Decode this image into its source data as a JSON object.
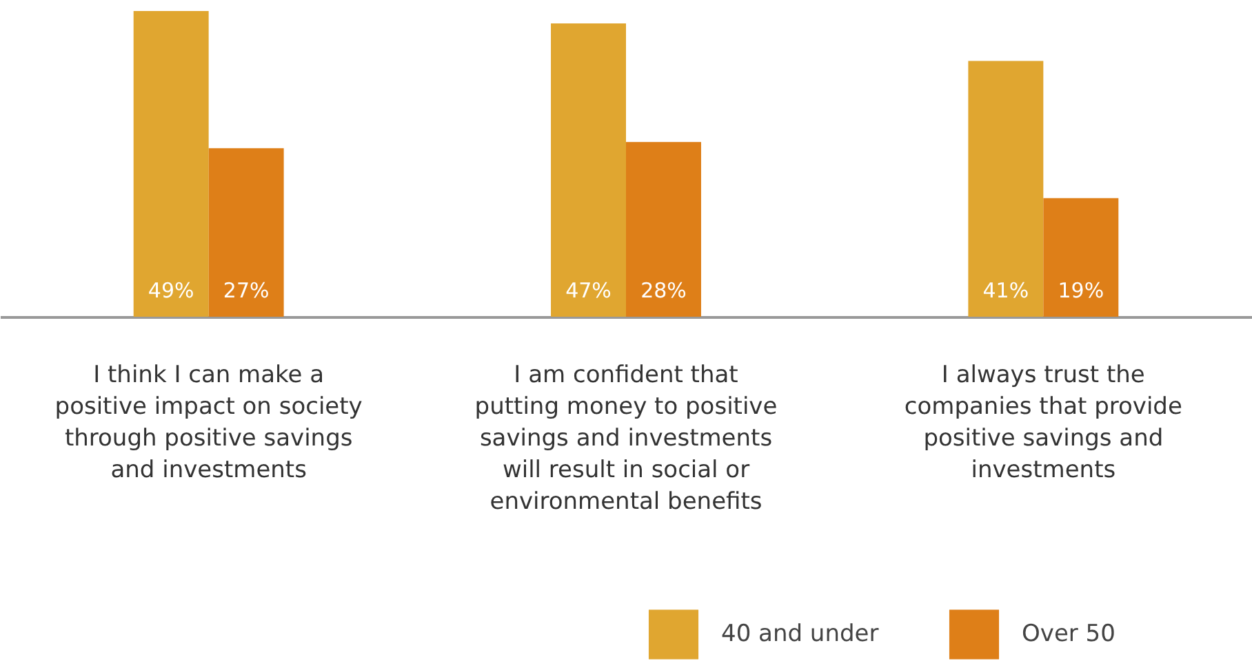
{
  "chart_data": {
    "type": "bar",
    "categories": [
      "I think I can make a positive impact on society through positive savings and investments",
      "I am confident that putting money to positive savings and investments will result in social or environmental benefits",
      "I always trust the companies that provide positive savings and investments"
    ],
    "series": [
      {
        "name": "40 and under",
        "color": "#e0a630",
        "values": [
          49,
          47,
          41
        ],
        "value_labels": [
          "49%",
          "47%",
          "41%"
        ]
      },
      {
        "name": "Over 50",
        "color": "#de7f18",
        "values": [
          27,
          28,
          19
        ],
        "value_labels": [
          "27%",
          "28%",
          "19%"
        ]
      }
    ],
    "legend": "bottom right"
  }
}
